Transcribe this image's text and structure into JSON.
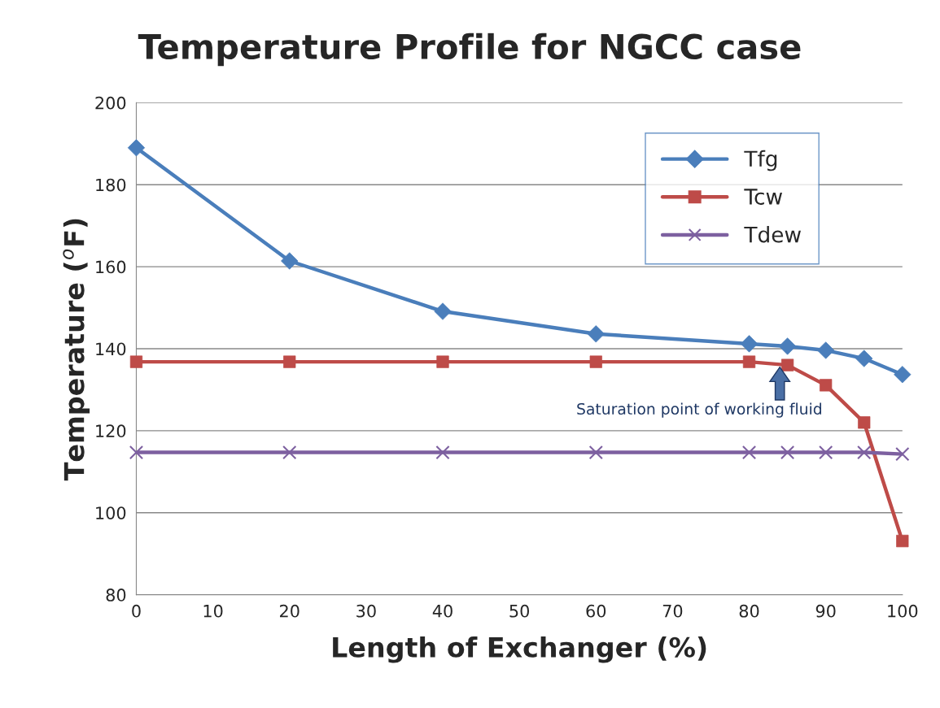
{
  "chart_data": {
    "type": "line",
    "title": "Temperature Profile for NGCC case",
    "xlabel": "Length of Exchanger (%)",
    "ylabel": "Temperature ($^{o}$F)",
    "x": [
      0,
      20,
      40,
      60,
      80,
      85,
      90,
      95,
      100
    ],
    "series": [
      {
        "name": "Tfg",
        "color": "#4a7ebb",
        "marker": "diamond",
        "values": [
          189,
          161.4,
          149.1,
          143.6,
          141.2,
          140.6,
          139.6,
          137.6,
          133.7
        ]
      },
      {
        "name": "Tcw",
        "color": "#be4b48",
        "marker": "square",
        "values": [
          136.8,
          136.8,
          136.8,
          136.8,
          136.8,
          136.0,
          131.1,
          122.0,
          93.1
        ]
      },
      {
        "name": "Tdew",
        "color": "#7d60a0",
        "marker": "cross",
        "values": [
          114.7,
          114.7,
          114.7,
          114.7,
          114.7,
          114.7,
          114.7,
          114.7,
          114.3
        ]
      }
    ],
    "xlim": [
      0,
      100
    ],
    "xticks": [
      0,
      10,
      20,
      30,
      40,
      50,
      60,
      70,
      80,
      90,
      100
    ],
    "ylim": [
      80,
      200
    ],
    "yticks": [
      80,
      100,
      120,
      140,
      160,
      180,
      200
    ],
    "grid": "y",
    "legend": "top right",
    "line_style": "solid",
    "annotations": [
      {
        "text": "Saturation point of working fluid",
        "x": 84,
        "y": 136.5
      }
    ]
  }
}
